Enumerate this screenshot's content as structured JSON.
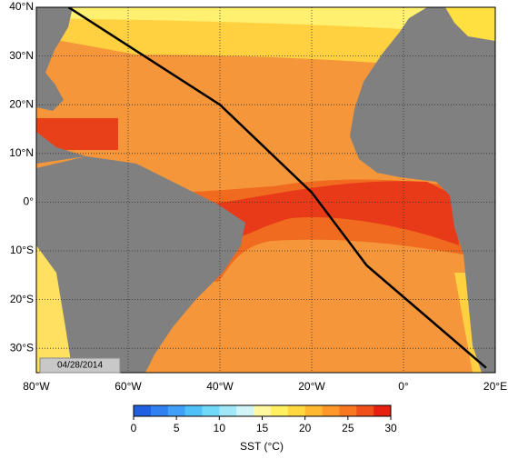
{
  "map": {
    "lon_range": [
      -80,
      20
    ],
    "lat_range": [
      -35,
      40
    ],
    "lon_ticks": [
      {
        "value": -80,
        "label": "80°W"
      },
      {
        "value": -60,
        "label": "60°W"
      },
      {
        "value": -40,
        "label": "40°W"
      },
      {
        "value": -20,
        "label": "20°W"
      },
      {
        "value": 0,
        "label": "0°"
      },
      {
        "value": 20,
        "label": "20°E"
      }
    ],
    "lat_ticks": [
      {
        "value": 40,
        "label": "40°N"
      },
      {
        "value": 30,
        "label": "30°N"
      },
      {
        "value": 20,
        "label": "20°N"
      },
      {
        "value": 10,
        "label": "10°N"
      },
      {
        "value": 0,
        "label": "0°"
      },
      {
        "value": -10,
        "label": "10°S"
      },
      {
        "value": -20,
        "label": "20°S"
      },
      {
        "value": -30,
        "label": "30°S"
      }
    ],
    "grid": true,
    "date": "04/28/2014",
    "track": {
      "lon": [
        -73,
        -40,
        -20,
        -8,
        18
      ],
      "lat": [
        40,
        20,
        2,
        -13,
        -34
      ],
      "color": "#000000"
    }
  },
  "colorbar": {
    "label": "SST (°C)",
    "range": [
      0,
      30
    ],
    "ticks": [
      0,
      5,
      10,
      15,
      20,
      25,
      30
    ],
    "colors": [
      "#1f5fe0",
      "#2f80f0",
      "#3fa0f8",
      "#50c0f8",
      "#70d8f8",
      "#a0e8f8",
      "#d0f4f8",
      "#fff8a0",
      "#fff060",
      "#ffd840",
      "#ffb830",
      "#ff9828",
      "#f87820",
      "#f05018",
      "#e82010"
    ]
  }
}
